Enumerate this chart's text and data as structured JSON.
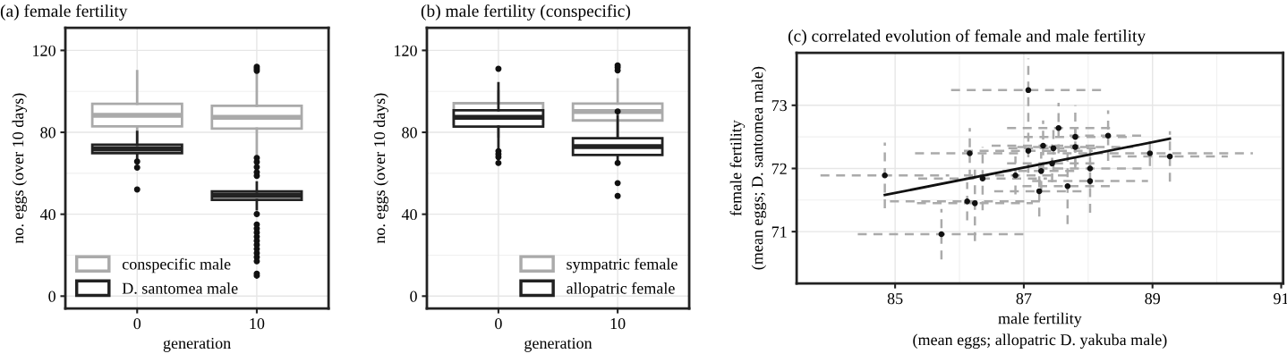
{
  "chart_data": [
    {
      "type": "box",
      "title": "(a) female fertility",
      "xlabel": "generation",
      "ylabel": "no. eggs (over 10 days)",
      "categories": [
        "0",
        "10"
      ],
      "ylim": [
        -6,
        131
      ],
      "yticks": [
        0,
        40,
        80,
        120
      ],
      "grid": true,
      "legend": "bottom left",
      "series": [
        {
          "name": "conspecific male",
          "color": "#aaaaaa",
          "boxes": [
            {
              "low": 76,
              "q1": 82.9,
              "median": 88.3,
              "q3": 93.9,
              "high": 109.8
            },
            {
              "low": 68,
              "q1": 81.8,
              "median": 87.3,
              "q3": 92.9,
              "high": 108.9,
              "outliers": [
                110,
                111,
                112
              ]
            }
          ]
        },
        {
          "name": "D. santomea male",
          "color": "#222222",
          "boxes": [
            {
              "low": 67.5,
              "q1": 69.8,
              "median": 71.8,
              "q3": 73.9,
              "high": 80.2,
              "outliers": [
                65.7,
                62.8,
                52.1
              ]
            },
            {
              "low": 42.4,
              "q1": 47,
              "median": 49.1,
              "q3": 51.1,
              "high": 55.5,
              "outliers": [
                67.5,
                65.5,
                63,
                60.5,
                58.7,
                40.1,
                35,
                33,
                31,
                29,
                27,
                25,
                23,
                21,
                19,
                17,
                11,
                10
              ]
            }
          ]
        }
      ]
    },
    {
      "type": "box",
      "title": "(b) male fertility (conspecific)",
      "xlabel": "generation",
      "ylabel": "no. eggs (over 10 days)",
      "categories": [
        "0",
        "10"
      ],
      "ylim": [
        -6,
        131
      ],
      "yticks": [
        0,
        40,
        80,
        120
      ],
      "grid": true,
      "legend": "bottom right",
      "series": [
        {
          "name": "sympatric female",
          "color": "#aaaaaa",
          "boxes": [
            {
              "low": 78,
              "q1": 84,
              "median": 89,
              "q3": 94.2,
              "high": 100
            },
            {
              "low": 76,
              "q1": 85.8,
              "median": 90.2,
              "q3": 94,
              "high": 105.8,
              "outliers": [
                110.2,
                111.7,
                112.7
              ]
            }
          ]
        },
        {
          "name": "allopatric female",
          "color": "#222222",
          "boxes": [
            {
              "low": 71.5,
              "q1": 82.8,
              "median": 87.3,
              "q3": 90.8,
              "high": 104,
              "outliers": [
                111,
                70.8,
                69.3,
                67.9,
                65
              ]
            },
            {
              "low": 66,
              "q1": 68.9,
              "median": 73,
              "q3": 77.1,
              "high": 88,
              "outliers": [
                90.2,
                65,
                55.2,
                48.9
              ]
            }
          ]
        }
      ]
    },
    {
      "type": "scatter",
      "title": "(c) correlated evolution of female and male fertility",
      "xlabel": "male fertility\n(mean eggs; allopatric D. yakuba male)",
      "ylabel": "female fertility\n(mean eggs; D. santomea male)",
      "xlim": [
        83.47,
        91.03
      ],
      "xticks": [
        85,
        87,
        89,
        91
      ],
      "ylim": [
        70.18,
        73.83
      ],
      "yticks": [
        71,
        72,
        73
      ],
      "grid": true,
      "series": [
        {
          "type": "scatter",
          "color": "#111111",
          "marker": "circle",
          "x": [
            84.84,
            85.72,
            86.16,
            86.12,
            86.24,
            86.36,
            86.87,
            87.07,
            87.07,
            87.3,
            87.46,
            87.27,
            87.24,
            87.54,
            87.44,
            87.68,
            87.8,
            87.8,
            88.03,
            88.03,
            88.31,
            88.96,
            89.27
          ],
          "values": [
            71.89,
            70.96,
            72.24,
            71.48,
            71.45,
            71.84,
            71.89,
            73.24,
            72.28,
            72.36,
            72.32,
            71.96,
            71.64,
            72.64,
            72.08,
            71.72,
            72.5,
            72.34,
            72.0,
            71.8,
            72.52,
            72.24,
            72.19
          ],
          "xerrors": [
            1.0,
            1.3,
            0.85,
            1.2,
            0.9,
            1.0,
            0.8,
            1.2,
            1.0,
            0.8,
            0.7,
            0.6,
            0.7,
            0.8,
            0.7,
            0.7,
            0.8,
            0.9,
            0.8,
            0.9,
            0.6,
            1.6,
            0.9
          ],
          "errors": [
            0.52,
            0.4,
            0.4,
            0.3,
            0.6,
            0.5,
            0.3,
            0.5,
            0.35,
            0.4,
            0.35,
            0.3,
            0.4,
            0.4,
            0.3,
            0.6,
            0.5,
            0.3,
            0.3,
            0.5,
            0.4,
            0.2,
            0.4
          ]
        },
        {
          "type": "line",
          "color": "#111111",
          "x": [
            84.84,
            89.27
          ],
          "values": [
            71.58,
            72.47
          ]
        }
      ]
    }
  ]
}
